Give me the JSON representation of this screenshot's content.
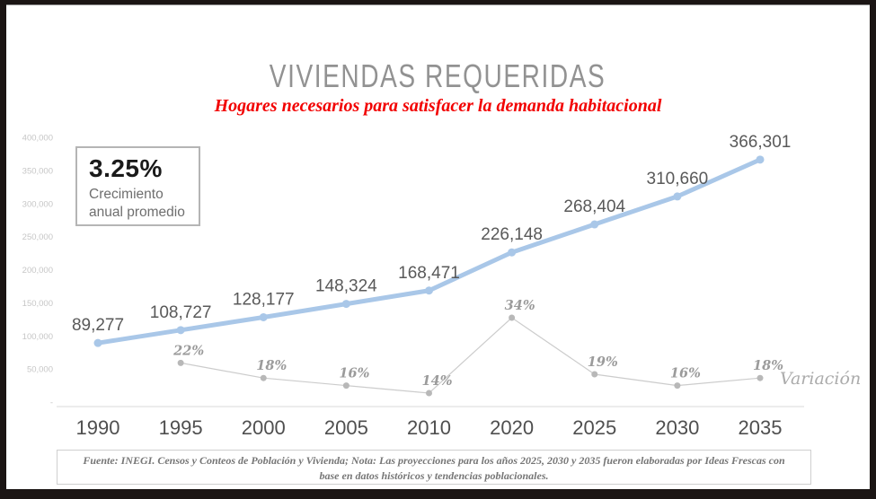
{
  "header": {
    "title": "VIVIENDAS REQUERIDAS",
    "subtitle": "Hogares necesarios para satisfacer la demanda habitacional"
  },
  "growth_box": {
    "value": "3.25%",
    "label": "Crecimiento anual promedio",
    "label_line1": "Crecimiento",
    "label_line2": "anual promedio"
  },
  "chart_data": {
    "type": "line",
    "title": "Viviendas requeridas 1990-2035",
    "categories": [
      "1990",
      "1995",
      "2000",
      "2005",
      "2010",
      "2020",
      "2025",
      "2030",
      "2035"
    ],
    "series": [
      {
        "name": "Viviendas requeridas",
        "values": [
          89277,
          108727,
          128177,
          148324,
          168471,
          226148,
          268404,
          310660,
          366301
        ],
        "labels": [
          "89,277",
          "108,727",
          "128,177",
          "148,324",
          "168,471",
          "226,148",
          "268,404",
          "310,660",
          "366,301"
        ],
        "color": "#a9c7e8"
      },
      {
        "name": "Variación",
        "values": [
          null,
          22,
          18,
          16,
          14,
          34,
          19,
          16,
          18
        ],
        "labels": [
          "",
          "22%",
          "18%",
          "16%",
          "14%",
          "34%",
          "19%",
          "16%",
          "18%"
        ],
        "color": "#cccccc",
        "point_color": "#b8b8b8"
      }
    ],
    "ylim": [
      0,
      400000
    ],
    "ytick_labels": [
      "400,000",
      "350,000",
      "300,000",
      "250,000",
      "200,000",
      "150,000",
      "100,000",
      "50,000",
      "-"
    ],
    "grid": false,
    "legend": "Variación",
    "legend_position": "right-of-last-variation-point",
    "axis_color": "#d9d9d9"
  },
  "footer": {
    "source": "Fuente: INEGI. Censos y Conteos de Población y Vivienda; Nota: Las proyecciones para los años 2025, 2030 y 2035 fueron elaboradas por Ideas Frescas con base en datos históricos y tendencias poblacionales."
  }
}
